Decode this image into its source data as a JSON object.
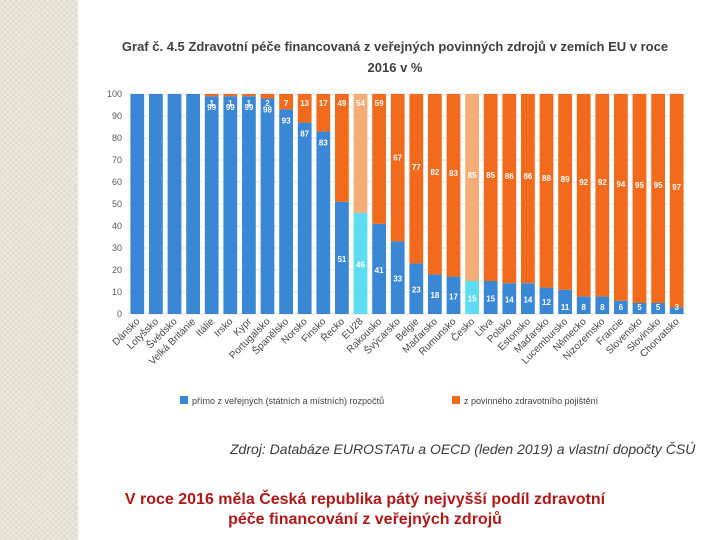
{
  "chart_data": {
    "type": "bar",
    "stacked": true,
    "title": "Graf č. 4.5 Zdravotní péče financovaná z veřejných povinných zdrojů v zemích EU v roce 2016 v %",
    "title_line1": "Graf č. 4.5 Zdravotní péče financovaná z veřejných povinných zdrojů v zemích EU v roce",
    "title_line2": "2016 v %",
    "categories": [
      "Dánsko",
      "Lotyšsko",
      "Švédsko",
      "Velká Británie",
      "Itálie",
      "Irsko",
      "Kypr",
      "Portugalsko",
      "Španělsko",
      "Norsko",
      "Finsko",
      "Řecko",
      "EU28",
      "Rakousko",
      "Švýcarsko",
      "Belgie",
      "Maďarsko",
      "Rumunsko",
      "Česko",
      "Litva",
      "Polsko",
      "Estonsko",
      "Maďarsko",
      "Lucembursko",
      "Německo",
      "Nizozemsko",
      "Francie",
      "Slovensko",
      "Slovinsko",
      "Chorvatsko"
    ],
    "series": [
      {
        "name": "přímo z veřejných (státních a místních) rozpočtů",
        "color": "#3a87d6",
        "values": [
          100,
          100,
          100,
          100,
          99,
          99,
          99,
          98,
          93,
          87,
          83,
          51,
          46,
          41,
          33,
          23,
          18,
          17,
          15,
          15,
          14,
          14,
          12,
          11,
          8,
          8,
          6,
          5,
          5,
          3
        ]
      },
      {
        "name": "z povinného zdravotního pojištění",
        "color": "#f26a1b",
        "values": [
          0,
          0,
          0,
          0,
          1,
          1,
          1,
          2,
          7,
          13,
          17,
          49,
          54,
          59,
          67,
          77,
          82,
          83,
          85,
          85,
          86,
          86,
          88,
          89,
          92,
          92,
          94,
          95,
          95,
          97
        ]
      }
    ],
    "highlight": {
      "EU28": {
        "top": "#f5ad78",
        "bottom": "#5edcf2"
      },
      "Česko": {
        "top": "#f5ad78",
        "bottom": "#5edcf2"
      }
    },
    "ylim": [
      0,
      100
    ],
    "yticks": [
      "0",
      "10",
      "20",
      "30",
      "40",
      "50",
      "60",
      "70",
      "80",
      "90",
      "100"
    ],
    "xlabel": "",
    "ylabel": "",
    "legend_position": "bottom"
  },
  "source_note": "Zdroj: Databáze EUROSTATu a OECD (leden 2019) a vlastní dopočty ČSÚ",
  "caption": "V roce 2016 měla Česká republika pátý nejvyšší podíl zdravotní péče financování z veřejných zdrojů"
}
